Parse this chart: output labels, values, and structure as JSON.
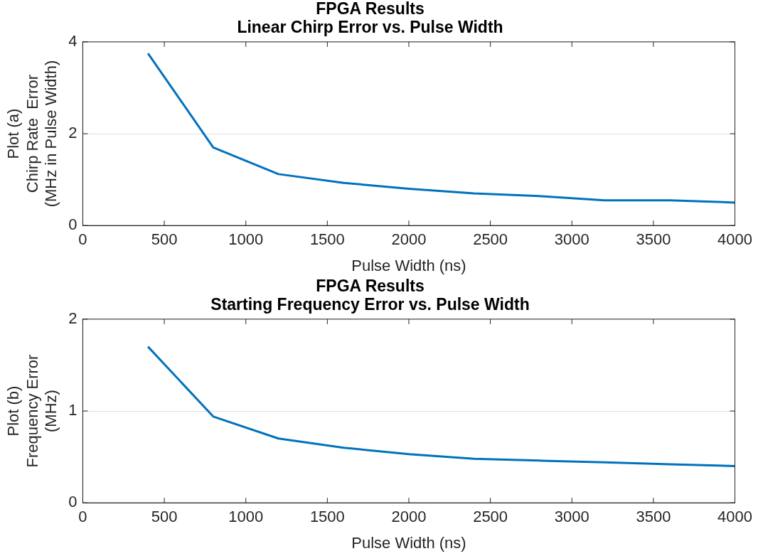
{
  "chart_data": [
    {
      "type": "line",
      "title": "FPGA Results\nLinear Chirp Error vs. Pulse Width",
      "xlabel": "Pulse Width (ns)",
      "ylabel": "Plot (a)\nChirp Rate  Error\n(MHz in Pulse Width)",
      "x": [
        400,
        800,
        1200,
        1600,
        2000,
        2400,
        2800,
        3200,
        3600,
        4000
      ],
      "series": [
        {
          "color": "#0072bd",
          "values": [
            3.75,
            1.7,
            1.12,
            0.93,
            0.8,
            0.7,
            0.64,
            0.55,
            0.55,
            0.5
          ]
        }
      ],
      "xlim": [
        0,
        4000
      ],
      "xticks": [
        0,
        500,
        1000,
        1500,
        2000,
        2500,
        3000,
        3500,
        4000
      ],
      "ylim": [
        0,
        4
      ],
      "yticks": [
        0,
        2,
        4
      ],
      "grid": "y",
      "legend": false
    },
    {
      "type": "line",
      "title": "FPGA Results\nStarting Frequency Error vs. Pulse Width",
      "xlabel": "Pulse Width (ns)",
      "ylabel": "Plot (b)\nFrequency Error\n(MHz)",
      "x": [
        400,
        800,
        1200,
        1600,
        2000,
        2400,
        2800,
        3200,
        3600,
        4000
      ],
      "series": [
        {
          "color": "#0072bd",
          "values": [
            1.7,
            0.94,
            0.7,
            0.6,
            0.53,
            0.48,
            0.46,
            0.44,
            0.42,
            0.4
          ]
        }
      ],
      "xlim": [
        0,
        4000
      ],
      "xticks": [
        0,
        500,
        1000,
        1500,
        2000,
        2500,
        3000,
        3500,
        4000
      ],
      "ylim": [
        0,
        2
      ],
      "yticks": [
        0,
        1,
        2
      ],
      "grid": "y",
      "legend": false
    }
  ]
}
